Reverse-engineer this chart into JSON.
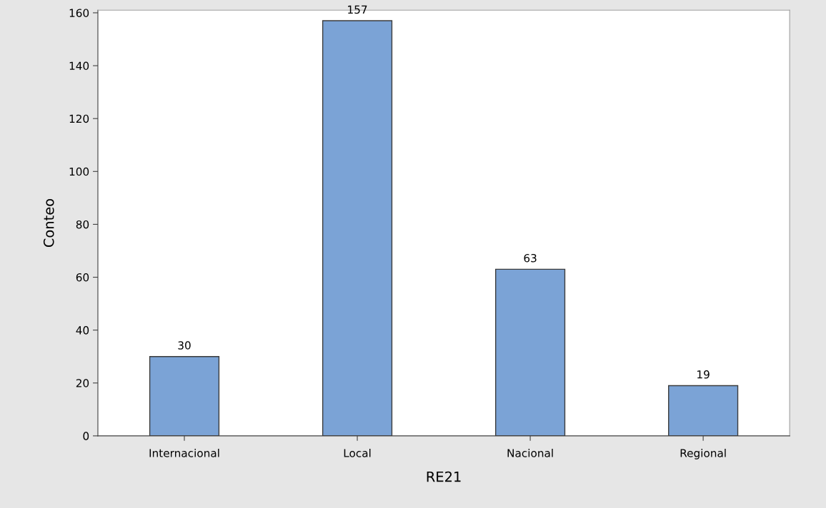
{
  "chart_data": {
    "type": "bar",
    "xlabel": "RE21",
    "ylabel": "Conteo",
    "categories": [
      "Internacional",
      "Local",
      "Nacional",
      "Regional"
    ],
    "values": [
      30,
      157,
      63,
      19
    ],
    "color": "#7ba3d6",
    "ylim": [
      0,
      161
    ],
    "yticks": [
      0,
      20,
      40,
      60,
      80,
      100,
      120,
      140,
      160
    ],
    "data_labels": true,
    "grid": false,
    "legend": false
  }
}
